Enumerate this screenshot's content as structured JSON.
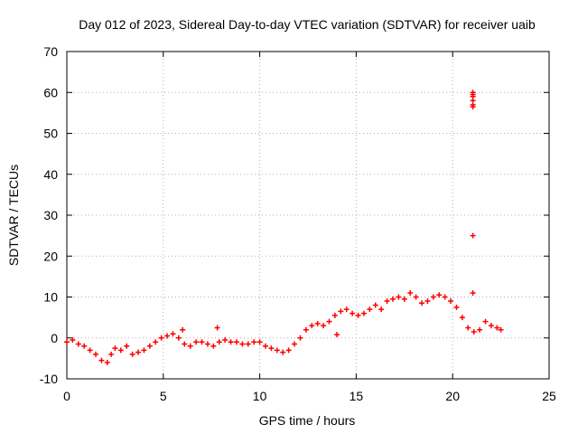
{
  "chart_data": {
    "type": "scatter",
    "title": "Day 012 of 2023, Sidereal Day-to-day VTEC variation (SDTVAR) for receiver uaib",
    "xlabel": "GPS time / hours",
    "ylabel": "SDTVAR / TECUs",
    "xlim": [
      0,
      25
    ],
    "ylim": [
      -10,
      70
    ],
    "xticks": [
      0,
      5,
      10,
      15,
      20,
      25
    ],
    "yticks": [
      -10,
      0,
      10,
      20,
      30,
      40,
      50,
      60,
      70
    ],
    "grid": true,
    "marker": "+",
    "series": [
      {
        "name": "SDTVAR",
        "color": "#ff0000",
        "x": [
          0.0,
          0.3,
          0.6,
          0.9,
          1.2,
          1.5,
          1.8,
          2.1,
          2.3,
          2.5,
          2.8,
          3.1,
          3.4,
          3.7,
          4.0,
          4.3,
          4.6,
          4.9,
          5.2,
          5.5,
          5.8,
          6.1,
          6.4,
          6.7,
          7.0,
          7.3,
          7.6,
          7.9,
          8.2,
          8.5,
          8.8,
          9.1,
          9.4,
          9.7,
          10.0,
          10.3,
          10.6,
          10.9,
          11.2,
          11.5,
          11.8,
          12.1,
          12.4,
          12.7,
          13.0,
          13.3,
          13.6,
          13.9,
          14.2,
          14.5,
          14.8,
          15.1,
          15.4,
          15.7,
          16.0,
          16.3,
          16.6,
          16.9,
          17.2,
          17.5,
          17.8,
          18.1,
          18.4,
          18.7,
          19.0,
          19.3,
          19.6,
          19.9,
          20.2,
          20.5,
          20.8,
          21.1,
          21.4,
          21.7,
          22.0,
          22.3,
          22.5,
          21.05,
          21.05,
          21.05,
          21.05,
          21.05,
          21.05,
          21.05,
          21.05,
          14.0,
          6.0,
          7.8
        ],
        "y": [
          -1,
          -0.5,
          -1.5,
          -2,
          -3,
          -4,
          -5.5,
          -6,
          -4,
          -2.5,
          -3,
          -2,
          -4,
          -3.5,
          -3,
          -2,
          -1,
          0,
          0.5,
          1,
          0,
          -1.5,
          -2,
          -1,
          -1,
          -1.5,
          -2,
          -1,
          -0.5,
          -1,
          -1,
          -1.5,
          -1.5,
          -1,
          -1,
          -2,
          -2.5,
          -3,
          -3.5,
          -3,
          -1.5,
          0,
          2,
          3,
          3.5,
          3,
          4,
          5.5,
          6.5,
          7,
          6,
          5.5,
          6,
          7,
          8,
          7,
          9,
          9.5,
          10,
          9.5,
          11,
          10,
          8.5,
          9,
          10,
          10.5,
          10,
          9,
          7.5,
          5,
          2.5,
          1.5,
          2,
          4,
          3,
          2.5,
          2,
          60,
          59,
          58,
          57,
          56.5,
          59.5,
          25,
          11,
          0.8,
          2,
          2.5
        ]
      }
    ]
  }
}
